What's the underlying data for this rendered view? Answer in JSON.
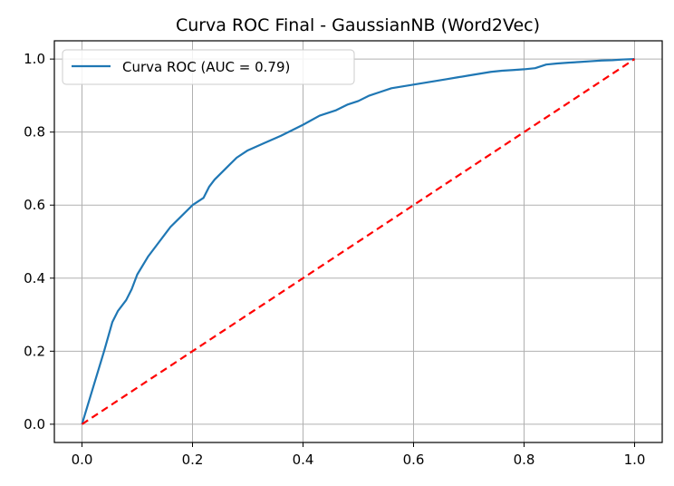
{
  "chart_data": {
    "type": "line",
    "title": "Curva ROC Final - GaussianNB (Word2Vec)",
    "xlabel": "",
    "ylabel": "",
    "xlim": [
      -0.05,
      1.05
    ],
    "ylim": [
      -0.05,
      1.05
    ],
    "grid": true,
    "legend_position": "upper-left",
    "x_ticks": [
      "0.0",
      "0.2",
      "0.4",
      "0.6",
      "0.8",
      "1.0"
    ],
    "y_ticks": [
      "0.0",
      "0.2",
      "0.4",
      "0.6",
      "0.8",
      "1.0"
    ],
    "series": [
      {
        "name": "Curva ROC (AUC = 0.79)",
        "color": "#1f77b4",
        "style": "solid",
        "x": [
          0.0,
          0.02,
          0.04,
          0.055,
          0.065,
          0.08,
          0.09,
          0.1,
          0.12,
          0.14,
          0.16,
          0.18,
          0.2,
          0.22,
          0.23,
          0.24,
          0.26,
          0.28,
          0.3,
          0.33,
          0.36,
          0.4,
          0.43,
          0.46,
          0.48,
          0.5,
          0.52,
          0.54,
          0.56,
          0.58,
          0.6,
          0.62,
          0.64,
          0.66,
          0.68,
          0.7,
          0.72,
          0.74,
          0.76,
          0.78,
          0.8,
          0.82,
          0.84,
          0.86,
          0.88,
          0.9,
          0.92,
          0.94,
          0.96,
          0.98,
          1.0
        ],
        "y": [
          0.0,
          0.1,
          0.2,
          0.28,
          0.31,
          0.34,
          0.37,
          0.41,
          0.46,
          0.5,
          0.54,
          0.57,
          0.6,
          0.62,
          0.65,
          0.67,
          0.7,
          0.73,
          0.75,
          0.77,
          0.79,
          0.82,
          0.845,
          0.86,
          0.875,
          0.885,
          0.9,
          0.91,
          0.92,
          0.925,
          0.93,
          0.935,
          0.94,
          0.945,
          0.95,
          0.955,
          0.96,
          0.965,
          0.968,
          0.97,
          0.972,
          0.975,
          0.985,
          0.988,
          0.99,
          0.992,
          0.994,
          0.996,
          0.997,
          0.999,
          1.0
        ]
      },
      {
        "name": "",
        "color": "#ff0000",
        "style": "dashed",
        "x": [
          0.0,
          1.0
        ],
        "y": [
          0.0,
          1.0
        ]
      }
    ]
  }
}
